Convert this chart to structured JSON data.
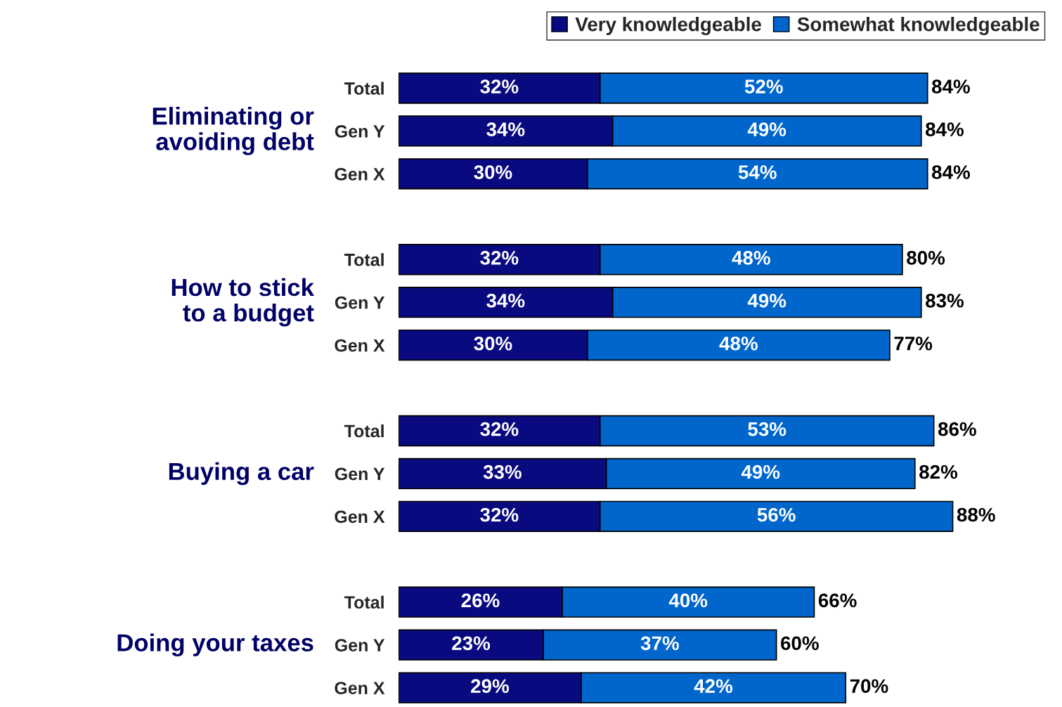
{
  "chart_data": {
    "type": "bar",
    "orientation": "horizontal",
    "stacked": true,
    "legend": "top right",
    "tick_labels": "y",
    "grid": false,
    "categories": [
      "Total",
      "Gen Y",
      "Gen X",
      null,
      "Total",
      "Gen Y",
      "Gen X",
      null,
      "Total",
      "Gen Y",
      "Gen X",
      null,
      "Total",
      "Gen Y",
      "Gen X"
    ],
    "series": [
      {
        "name": "Very knowledgeable",
        "color": "#0a0a80",
        "values": [
          32,
          34,
          30,
          null,
          32,
          34,
          30,
          null,
          32,
          33,
          32,
          null,
          26,
          23,
          29
        ],
        "value_labels": [
          "32%",
          "34%",
          "30%",
          null,
          "32%",
          "34%",
          "30%",
          null,
          "32%",
          "33%",
          "32%",
          null,
          "26%",
          "23%",
          "29%"
        ]
      },
      {
        "name": "Somewhat knowledgeable",
        "color": "#0066cc",
        "values": [
          52,
          49,
          54,
          null,
          48,
          49,
          48,
          null,
          53,
          49,
          56,
          null,
          40,
          37,
          42
        ],
        "value_labels": [
          "52%",
          "49%",
          "54%",
          null,
          "48%",
          "49%",
          "48%",
          null,
          "53%",
          "49%",
          "56%",
          null,
          "40%",
          "37%",
          "42%"
        ]
      }
    ],
    "totals": [
      "84%",
      "84%",
      "84%",
      null,
      "80%",
      "83%",
      "77%",
      null,
      "86%",
      "82%",
      "88%",
      null,
      "66%",
      "60%",
      "70%"
    ],
    "annotations": [
      "Eliminating or\navoiding debt",
      "How to stick\nto a budget",
      "Buying a car",
      "Doing your taxes"
    ]
  }
}
